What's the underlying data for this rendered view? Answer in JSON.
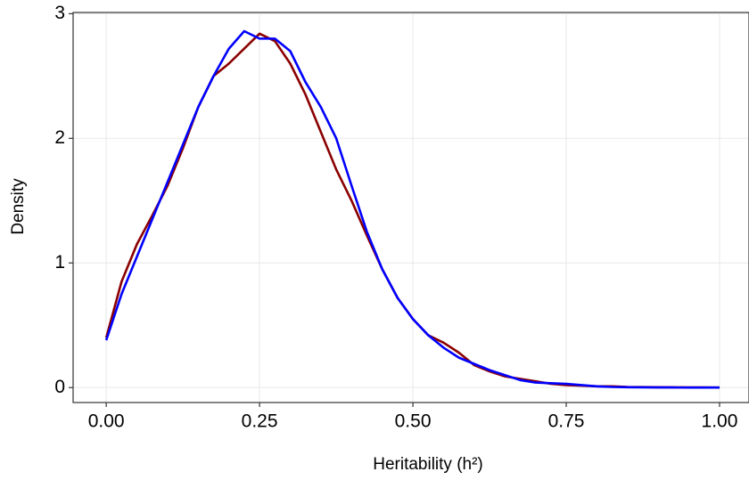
{
  "chart_data": {
    "type": "line",
    "x_label": "Heritability (h²)",
    "y_label": "Density",
    "x": [
      0,
      0.025,
      0.05,
      0.075,
      0.1,
      0.125,
      0.15,
      0.175,
      0.2,
      0.225,
      0.25,
      0.275,
      0.3,
      0.325,
      0.35,
      0.375,
      0.4,
      0.425,
      0.45,
      0.475,
      0.5,
      0.525,
      0.55,
      0.575,
      0.6,
      0.625,
      0.65,
      0.675,
      0.7,
      0.725,
      0.75,
      0.775,
      0.8,
      0.825,
      0.85,
      0.875,
      0.9,
      0.925,
      0.95,
      0.975,
      1.0
    ],
    "series": [
      {
        "color": "#8b0000",
        "values": [
          0.4,
          0.85,
          1.15,
          1.38,
          1.62,
          1.92,
          2.25,
          2.5,
          2.6,
          2.72,
          2.84,
          2.78,
          2.6,
          2.35,
          2.05,
          1.75,
          1.5,
          1.22,
          0.95,
          0.72,
          0.55,
          0.42,
          0.36,
          0.28,
          0.18,
          0.13,
          0.09,
          0.07,
          0.05,
          0.03,
          0.02,
          0.015,
          0.01,
          0.01,
          0.005,
          0.004,
          0.003,
          0.002,
          0.001,
          0.001,
          0
        ]
      },
      {
        "color": "#0000ff",
        "values": [
          0.38,
          0.75,
          1.05,
          1.35,
          1.65,
          1.95,
          2.25,
          2.5,
          2.72,
          2.86,
          2.8,
          2.8,
          2.7,
          2.45,
          2.25,
          2.0,
          1.62,
          1.25,
          0.95,
          0.72,
          0.55,
          0.42,
          0.32,
          0.24,
          0.19,
          0.14,
          0.1,
          0.06,
          0.04,
          0.035,
          0.03,
          0.02,
          0.01,
          0.005,
          0.003,
          0.002,
          0.001,
          0.001,
          0,
          0,
          0
        ]
      }
    ],
    "xlim": [
      -0.054,
      1.048
    ],
    "ylim": [
      -0.12,
      3.01
    ],
    "xticks": [
      {
        "value": 0,
        "label": "0.00"
      },
      0.25,
      {
        "value": 0.5,
        "label": "0.50"
      },
      0.75,
      {
        "value": 1,
        "label": "1.00"
      }
    ],
    "yticks": [
      0,
      1,
      2,
      3
    ],
    "grid": true
  }
}
